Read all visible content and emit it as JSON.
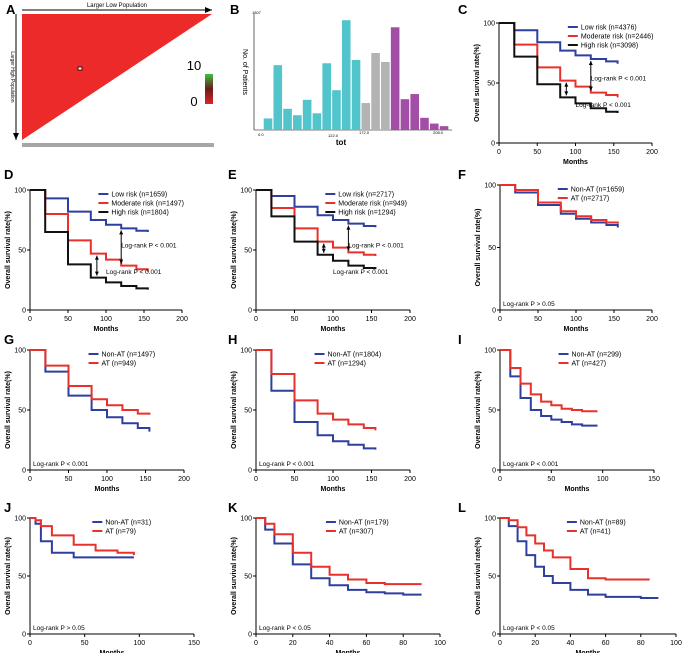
{
  "figure": {
    "panel_a": {
      "letter": "A",
      "top_label": "Larger Low Population",
      "left_label": "Larger High Population",
      "color_scale": {
        "max": "10",
        "min": "0"
      },
      "colors": {
        "triangle": "#ed2a2a",
        "bar": "#a6a6a6"
      }
    },
    "panel_b": {
      "letter": "B",
      "ylabel": "No. of Patients",
      "ymax_label": "1807",
      "xlabel": "tot",
      "xticks": [
        "0.0",
        "122.0",
        "172.0",
        "208.0"
      ]
    }
  },
  "chart_data": [
    {
      "panel": "B",
      "type": "bar",
      "xlabel": "tot",
      "ylabel": "No. of Patients",
      "xlim": [
        0,
        208
      ],
      "ylim": [
        0,
        1807
      ],
      "groups": [
        {
          "name": "low",
          "color": "#52c4cc",
          "x": [
            28,
            38,
            48,
            58,
            68,
            78,
            88,
            98,
            108,
            118
          ],
          "values": [
            180,
            1010,
            330,
            230,
            470,
            260,
            1040,
            620,
            1710,
            1090
          ]
        },
        {
          "name": "moderate",
          "color": "#b3b3b3",
          "x": [
            128,
            138,
            148
          ],
          "values": [
            420,
            1200,
            1060
          ]
        },
        {
          "name": "high",
          "color": "#a24ea6",
          "x": [
            158,
            168,
            178,
            188,
            198,
            208
          ],
          "values": [
            1600,
            480,
            560,
            190,
            100,
            60
          ]
        }
      ]
    },
    {
      "panel": "C",
      "type": "line",
      "ylabel": "Overall survival rate(%)",
      "xlabel": "Months",
      "xlim": [
        0,
        200
      ],
      "ylim": [
        0,
        100
      ],
      "xticks": [
        0,
        50,
        100,
        150,
        200
      ],
      "yticks": [
        0,
        50,
        100
      ],
      "series": [
        {
          "name": "Low risk (n=4376)",
          "color": "#2f3f9e",
          "x": [
            0,
            20,
            50,
            80,
            100,
            120,
            140,
            155
          ],
          "values": [
            100,
            94,
            84,
            77,
            73,
            70,
            68,
            66
          ]
        },
        {
          "name": "Moderate risk (n=2446)",
          "color": "#e8312b",
          "x": [
            0,
            20,
            50,
            80,
            100,
            120,
            140,
            155
          ],
          "values": [
            100,
            82,
            63,
            52,
            47,
            42,
            40,
            38
          ]
        },
        {
          "name": "High risk (n=3098)",
          "color": "#111111",
          "x": [
            0,
            20,
            50,
            80,
            100,
            120,
            140,
            155
          ],
          "values": [
            100,
            72,
            49,
            38,
            33,
            29,
            26,
            25
          ]
        }
      ],
      "annotations": [
        "Log-rank P < 0.001",
        "Log-rank P < 0.001"
      ],
      "legend_position": "top-right"
    },
    {
      "panel": "D",
      "type": "line",
      "ylabel": "Overall survival rate(%)",
      "xlabel": "Months",
      "xlim": [
        0,
        200
      ],
      "ylim": [
        0,
        100
      ],
      "xticks": [
        0,
        50,
        100,
        150,
        200
      ],
      "yticks": [
        0,
        50,
        100
      ],
      "series": [
        {
          "name": "Low risk (n=1659)",
          "color": "#2f3f9e",
          "x": [
            0,
            20,
            50,
            80,
            100,
            120,
            140,
            155
          ],
          "values": [
            100,
            93,
            82,
            75,
            71,
            68,
            66,
            65
          ]
        },
        {
          "name": "Moderate risk (n=1497)",
          "color": "#e8312b",
          "x": [
            0,
            20,
            50,
            80,
            100,
            120,
            140,
            155
          ],
          "values": [
            100,
            80,
            58,
            47,
            42,
            37,
            34,
            32
          ]
        },
        {
          "name": "High risk (n=1804)",
          "color": "#111111",
          "x": [
            0,
            20,
            50,
            80,
            100,
            120,
            140,
            155
          ],
          "values": [
            100,
            65,
            38,
            27,
            23,
            20,
            18,
            17
          ]
        }
      ],
      "annotations": [
        "Log-rank P < 0.001",
        "Log-rank P < 0.001"
      ],
      "legend_position": "top-right"
    },
    {
      "panel": "E",
      "type": "line",
      "ylabel": "Overall survival rate(%)",
      "xlabel": "Months",
      "xlim": [
        0,
        200
      ],
      "ylim": [
        0,
        100
      ],
      "xticks": [
        0,
        50,
        100,
        150,
        200
      ],
      "yticks": [
        0,
        50,
        100
      ],
      "series": [
        {
          "name": "Low risk (n=2717)",
          "color": "#2f3f9e",
          "x": [
            0,
            20,
            50,
            80,
            100,
            120,
            140,
            155
          ],
          "values": [
            100,
            95,
            86,
            79,
            75,
            72,
            70,
            69
          ]
        },
        {
          "name": "Moderate risk (n=949)",
          "color": "#e8312b",
          "x": [
            0,
            20,
            50,
            80,
            100,
            120,
            140,
            155
          ],
          "values": [
            100,
            85,
            68,
            57,
            52,
            48,
            46,
            45
          ]
        },
        {
          "name": "High risk (n=1294)",
          "color": "#111111",
          "x": [
            0,
            20,
            50,
            80,
            100,
            120,
            140,
            155
          ],
          "values": [
            100,
            78,
            57,
            46,
            41,
            37,
            35,
            34
          ]
        }
      ],
      "annotations": [
        "Log-rank P < 0.001",
        "Log-rank P < 0.001"
      ],
      "legend_position": "top-right"
    },
    {
      "panel": "F",
      "type": "line",
      "ylabel": "Overall survival rate(%)",
      "xlabel": "Months",
      "xlim": [
        0,
        200
      ],
      "ylim": [
        0,
        100
      ],
      "xticks": [
        0,
        50,
        100,
        150,
        200
      ],
      "yticks": [
        0,
        50,
        100
      ],
      "series": [
        {
          "name": "Non-AT (n=1659)",
          "color": "#2f3f9e",
          "x": [
            0,
            20,
            50,
            80,
            100,
            120,
            140,
            155
          ],
          "values": [
            100,
            94,
            84,
            77,
            73,
            70,
            68,
            66
          ]
        },
        {
          "name": "AT (n=2717)",
          "color": "#e8312b",
          "x": [
            0,
            20,
            50,
            80,
            100,
            120,
            140,
            155
          ],
          "values": [
            100,
            96,
            86,
            79,
            75,
            72,
            70,
            69
          ]
        }
      ],
      "annotations": [
        "Log-rank P > 0.05"
      ],
      "legend_position": "top-center"
    },
    {
      "panel": "G",
      "type": "line",
      "ylabel": "Overall survival rate(%)",
      "xlabel": "Months",
      "xlim": [
        0,
        200
      ],
      "ylim": [
        0,
        100
      ],
      "xticks": [
        0,
        50,
        100,
        150,
        200
      ],
      "yticks": [
        0,
        50,
        100
      ],
      "series": [
        {
          "name": "Non-AT (n=1497)",
          "color": "#2f3f9e",
          "x": [
            0,
            20,
            50,
            80,
            100,
            120,
            140,
            155
          ],
          "values": [
            100,
            82,
            62,
            50,
            44,
            39,
            35,
            32
          ]
        },
        {
          "name": "AT (n=949)",
          "color": "#e8312b",
          "x": [
            0,
            20,
            50,
            80,
            100,
            120,
            140,
            155
          ],
          "values": [
            100,
            87,
            70,
            59,
            54,
            50,
            47,
            46
          ]
        }
      ],
      "annotations": [
        "Log-rank P < 0.001"
      ],
      "legend_position": "top-center"
    },
    {
      "panel": "H",
      "type": "line",
      "ylabel": "Overall survival rate(%)",
      "xlabel": "Months",
      "xlim": [
        0,
        200
      ],
      "ylim": [
        0,
        100
      ],
      "xticks": [
        0,
        50,
        100,
        150,
        200
      ],
      "yticks": [
        0,
        50,
        100
      ],
      "series": [
        {
          "name": "Non-AT (n=1804)",
          "color": "#2f3f9e",
          "x": [
            0,
            20,
            50,
            80,
            100,
            120,
            140,
            155
          ],
          "values": [
            100,
            66,
            40,
            29,
            24,
            21,
            18,
            17
          ]
        },
        {
          "name": "AT (n=1294)",
          "color": "#e8312b",
          "x": [
            0,
            20,
            50,
            80,
            100,
            120,
            140,
            155
          ],
          "values": [
            100,
            80,
            58,
            47,
            42,
            38,
            35,
            33
          ]
        }
      ],
      "annotations": [
        "Log-rank P < 0.001"
      ],
      "legend_position": "top-center"
    },
    {
      "panel": "I",
      "type": "line",
      "ylabel": "Overall survival rate(%)",
      "xlabel": "Months",
      "xlim": [
        0,
        150
      ],
      "ylim": [
        0,
        100
      ],
      "xticks": [
        0,
        50,
        100,
        150
      ],
      "yticks": [
        0,
        50,
        100
      ],
      "series": [
        {
          "name": "Non-AT (n=299)",
          "color": "#2f3f9e",
          "x": [
            0,
            10,
            20,
            30,
            40,
            50,
            60,
            70,
            80,
            95
          ],
          "values": [
            100,
            78,
            60,
            50,
            45,
            42,
            40,
            38,
            37,
            37
          ]
        },
        {
          "name": "AT (n=427)",
          "color": "#e8312b",
          "x": [
            0,
            10,
            20,
            30,
            40,
            50,
            60,
            70,
            80,
            95
          ],
          "values": [
            100,
            85,
            72,
            63,
            57,
            54,
            51,
            50,
            49,
            49
          ]
        }
      ],
      "annotations": [
        "Log-rank P < 0.001"
      ],
      "legend_position": "top-center"
    },
    {
      "panel": "J",
      "type": "line",
      "ylabel": "Overall survival rate(%)",
      "xlabel": "Months",
      "xlim": [
        0,
        150
      ],
      "ylim": [
        0,
        100
      ],
      "xticks": [
        0,
        50,
        100,
        150
      ],
      "yticks": [
        0,
        50,
        100
      ],
      "series": [
        {
          "name": "Non-AT (n=31)",
          "color": "#2f3f9e",
          "x": [
            0,
            5,
            10,
            20,
            40,
            60,
            80,
            95
          ],
          "values": [
            100,
            95,
            80,
            70,
            66,
            66,
            66,
            66
          ]
        },
        {
          "name": "AT (n=79)",
          "color": "#e8312b",
          "x": [
            0,
            5,
            10,
            20,
            40,
            60,
            80,
            95
          ],
          "values": [
            100,
            98,
            93,
            85,
            77,
            72,
            70,
            68
          ]
        }
      ],
      "annotations": [
        "Log-rank P > 0.05"
      ],
      "legend_position": "top-center"
    },
    {
      "panel": "K",
      "type": "line",
      "ylabel": "Overall survival rate(%)",
      "xlabel": "Months",
      "xlim": [
        0,
        100
      ],
      "ylim": [
        0,
        100
      ],
      "xticks": [
        0,
        20,
        40,
        60,
        80,
        100
      ],
      "yticks": [
        0,
        50,
        100
      ],
      "series": [
        {
          "name": "Non-AT (n=179)",
          "color": "#2f3f9e",
          "x": [
            0,
            5,
            10,
            20,
            30,
            40,
            50,
            60,
            70,
            80,
            90
          ],
          "values": [
            100,
            90,
            78,
            60,
            48,
            42,
            38,
            36,
            35,
            34,
            34
          ]
        },
        {
          "name": "AT (n=307)",
          "color": "#e8312b",
          "x": [
            0,
            5,
            10,
            20,
            30,
            40,
            50,
            60,
            70,
            80,
            90
          ],
          "values": [
            100,
            95,
            86,
            70,
            58,
            51,
            47,
            44,
            43,
            43,
            43
          ]
        }
      ],
      "annotations": [
        "Log-rank P < 0.05"
      ],
      "legend_position": "top-center"
    },
    {
      "panel": "L",
      "type": "line",
      "ylabel": "Overall survival rate(%)",
      "xlabel": "Months",
      "xlim": [
        0,
        100
      ],
      "ylim": [
        0,
        100
      ],
      "xticks": [
        0,
        20,
        40,
        60,
        80,
        100
      ],
      "yticks": [
        0,
        50,
        100
      ],
      "series": [
        {
          "name": "Non-AT (n=89)",
          "color": "#2f3f9e",
          "x": [
            0,
            5,
            10,
            15,
            20,
            25,
            30,
            40,
            50,
            60,
            70,
            80,
            90
          ],
          "values": [
            100,
            93,
            80,
            68,
            58,
            50,
            44,
            38,
            34,
            32,
            32,
            31,
            31
          ]
        },
        {
          "name": "AT (n=41)",
          "color": "#e8312b",
          "x": [
            0,
            5,
            10,
            15,
            20,
            25,
            30,
            40,
            50,
            60,
            70,
            80,
            85
          ],
          "values": [
            100,
            98,
            92,
            85,
            78,
            72,
            66,
            56,
            48,
            47,
            47,
            47,
            47
          ]
        }
      ],
      "annotations": [
        "Log-rank P < 0.05"
      ],
      "legend_position": "top-center"
    }
  ]
}
